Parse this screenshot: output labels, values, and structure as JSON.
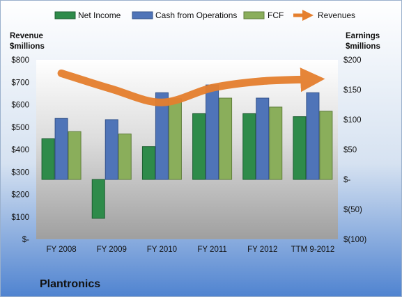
{
  "chart_data": {
    "type": "bar",
    "title": "Plantronics",
    "categories": [
      "FY 2008",
      "FY 2009",
      "FY 2010",
      "FY 2011",
      "FY 2012",
      "TTM 9-2012"
    ],
    "series": [
      {
        "name": "Net Income",
        "axis": "right",
        "kind": "bar",
        "color": "#2E8B4A",
        "values": [
          68,
          -65,
          55,
          110,
          110,
          105
        ]
      },
      {
        "name": "Cash from Operations",
        "axis": "right",
        "kind": "bar",
        "color": "#4F74B8",
        "values": [
          102,
          100,
          145,
          158,
          136,
          145
        ]
      },
      {
        "name": "FCF",
        "axis": "right",
        "kind": "bar",
        "color": "#8AAE5B",
        "values": [
          80,
          76,
          135,
          136,
          121,
          114
        ]
      },
      {
        "name": "Revenues",
        "axis": "left",
        "kind": "line",
        "color": "#E57F2E",
        "values": [
          740,
          670,
          610,
          675,
          705,
          713
        ]
      }
    ],
    "left_axis": {
      "label_line1": "Revenue",
      "label_line2": "$millions",
      "range": [
        0,
        800
      ],
      "ticks": [
        0,
        100,
        200,
        300,
        400,
        500,
        600,
        700,
        800
      ],
      "tick_labels": [
        "$-",
        "$100",
        "$200",
        "$300",
        "$400",
        "$500",
        "$600",
        "$700",
        "$800"
      ]
    },
    "right_axis": {
      "label_line1": "Earnings",
      "label_line2": "$millions",
      "range": [
        -100,
        200
      ],
      "ticks": [
        -100,
        -50,
        0,
        50,
        100,
        150,
        200
      ],
      "tick_labels": [
        "$(100)",
        "$(50)",
        "$-",
        "$50",
        "$100",
        "$150",
        "$200"
      ]
    },
    "legend_position": "top",
    "grid": false
  }
}
